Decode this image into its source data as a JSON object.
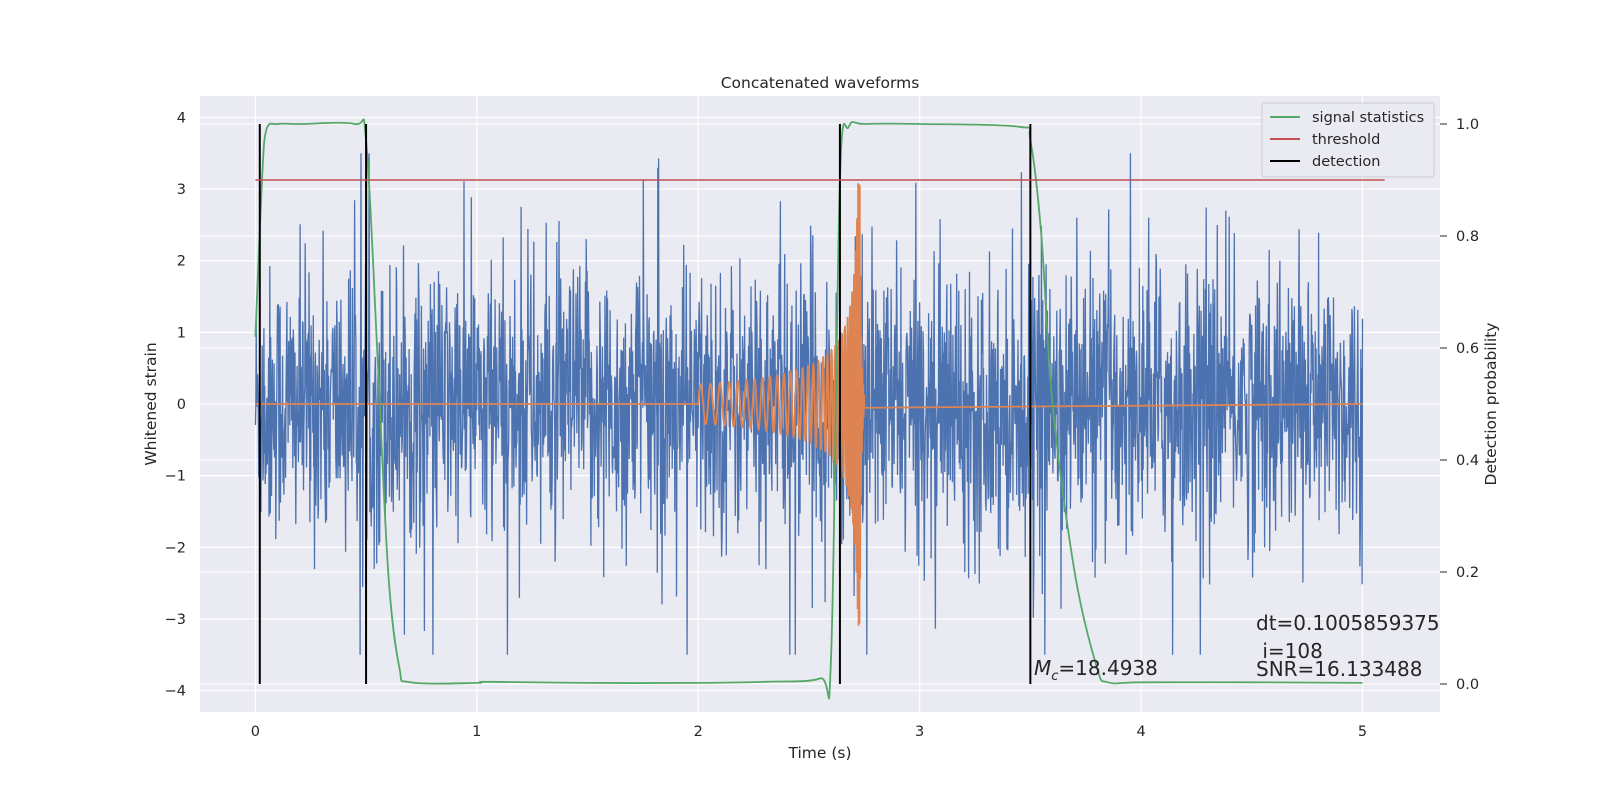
{
  "chart_data": {
    "type": "line",
    "title": "Concatenated waveforms",
    "xlabel": "Time (s)",
    "ylabel": "Whitened strain",
    "y2label": "Detection probability",
    "xlim": [
      -0.25,
      5.35
    ],
    "ylim": [
      -4.3,
      4.3
    ],
    "y2lim": [
      -0.05,
      1.05
    ],
    "x_ticks": [
      0,
      1,
      2,
      3,
      4,
      5
    ],
    "x_tick_labels": [
      "0",
      "1",
      "2",
      "3",
      "4",
      "5"
    ],
    "y_ticks": [
      4,
      3,
      2,
      1,
      0,
      -1,
      -2,
      -3,
      -4
    ],
    "y_tick_labels": [
      "4",
      "3",
      "2",
      "1",
      "0",
      "−1",
      "−2",
      "−3",
      "−4"
    ],
    "y2_ticks": [
      1.0,
      0.8,
      0.6,
      0.4,
      0.2,
      0.0
    ],
    "y2_tick_labels": [
      "1.0",
      "0.8",
      "0.6",
      "0.4",
      "0.2",
      "0.0"
    ],
    "grid": true,
    "legend_position": "top-right",
    "colors": {
      "plot_bg": "#eaeaf2",
      "grid": "#ffffff",
      "strain": "#4c72b0",
      "template": "#dd8452",
      "signal_statistics": "#55a868",
      "threshold": "#c44e52",
      "detection": "#000000"
    },
    "legend": [
      {
        "label": "signal statistics",
        "color": "#55a868"
      },
      {
        "label": "threshold",
        "color": "#c44e52"
      },
      {
        "label": "detection",
        "color": "#000000"
      }
    ],
    "strain_noise": {
      "x_range": [
        0,
        5
      ],
      "approx_abs_max": 3.5
    },
    "template_chirp": {
      "x_range": [
        2.0,
        2.75
      ],
      "peak_amplitude": 3.1,
      "peak_time": 2.73
    },
    "signal_statistics": {
      "x": [
        0.0,
        0.03,
        0.05,
        0.1,
        0.2,
        0.45,
        0.5,
        0.55,
        0.6,
        0.65,
        0.7,
        1.0,
        1.05,
        1.5,
        2.0,
        2.3,
        2.55,
        2.6,
        2.64,
        2.68,
        2.75,
        3.0,
        3.45,
        3.5,
        3.55,
        3.6,
        3.7,
        3.8,
        3.85,
        4.0,
        4.5,
        5.0
      ],
      "y": [
        0.62,
        0.9,
        0.99,
        1.0,
        1.0,
        1.0,
        0.97,
        0.6,
        0.2,
        0.03,
        0.003,
        0.002,
        0.004,
        0.002,
        0.002,
        0.004,
        0.01,
        0.05,
        0.9,
        0.995,
        1.0,
        1.0,
        0.995,
        0.97,
        0.8,
        0.5,
        0.2,
        0.03,
        0.003,
        0.003,
        0.003,
        0.002
      ]
    },
    "threshold": {
      "x": [
        0.0,
        5.1
      ],
      "y": [
        0.9,
        0.9
      ]
    },
    "detections": [
      0.02,
      0.5,
      2.64,
      3.5
    ],
    "annotations": {
      "mc_prefix": "M",
      "mc_sub": "c",
      "mc_value": "=18.4938",
      "dt": "dt=0.1005859375",
      "i": " i=108",
      "snr": "SNR=16.133488"
    }
  }
}
